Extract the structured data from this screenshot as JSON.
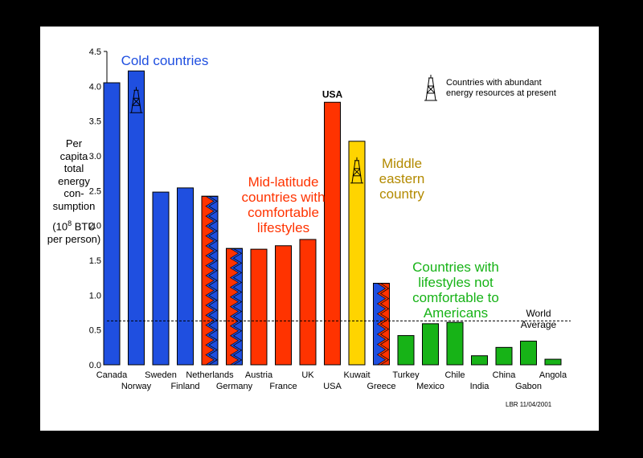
{
  "chart_data": {
    "type": "bar",
    "ylim": [
      0,
      4.5
    ],
    "yticks": [
      "0.0",
      "0.5",
      "1.0",
      "1.5",
      "2.0",
      "2.5",
      "3.0",
      "3.5",
      "4.0",
      "4.5"
    ],
    "ylabel": [
      "Per",
      "capita",
      "total",
      "energy",
      "con-",
      "sumption",
      "(10^8 BTU",
      "per person)"
    ],
    "categories": [
      "Canada",
      "Norway",
      "Sweden",
      "Finland",
      "Netherlands",
      "Germany",
      "Austria",
      "France",
      "UK",
      "USA",
      "Kuwait",
      "Greece",
      "Turkey",
      "Mexico",
      "Chile",
      "India",
      "China",
      "Gabon",
      "Angola"
    ],
    "values": [
      4.05,
      4.22,
      2.48,
      2.54,
      2.42,
      1.67,
      1.66,
      1.71,
      1.8,
      3.77,
      3.21,
      1.17,
      0.42,
      0.59,
      0.61,
      0.13,
      0.25,
      0.34,
      0.08
    ],
    "groups": [
      "cold",
      "cold",
      "cold",
      "cold",
      "cold",
      "cold",
      "mid",
      "mid",
      "mid",
      "mid",
      "mideast",
      "mid",
      "notcomf",
      "notcomf",
      "notcomf",
      "notcomf",
      "notcomf",
      "notcomf",
      "notcomf"
    ],
    "hatched": [
      false,
      false,
      false,
      false,
      true,
      true,
      false,
      false,
      false,
      false,
      false,
      true,
      false,
      false,
      false,
      false,
      false,
      false,
      false
    ],
    "hatch_colors": [
      "#ff3300",
      "#1f4fe0",
      "#17b317"
    ],
    "energy_resource_icon": [
      false,
      true,
      false,
      false,
      false,
      false,
      false,
      false,
      false,
      false,
      true,
      false,
      false,
      false,
      false,
      false,
      false,
      false,
      false
    ],
    "world_average": 0.63,
    "world_average_label": [
      "World",
      "Average"
    ],
    "bar_labels": {
      "USA": "USA"
    },
    "annotations": {
      "cold": "Cold countries",
      "mid": [
        "Mid-latitude",
        "countries with",
        "comfortable",
        "lifestyles"
      ],
      "mideast": [
        "Middle",
        "eastern",
        "country"
      ],
      "notcomf": [
        "Countries with",
        "lifestyles not",
        "comfortable to",
        "Americans"
      ]
    },
    "legend": [
      "Countries with abundant",
      "energy resources at present"
    ],
    "credit": "LBR 11/04/2001",
    "grid": false
  },
  "colors": {
    "cold": "#1f4fe0",
    "mid": "#ff3300",
    "mideast": "#ffd400",
    "notcomf": "#17b317",
    "mideast_text": "#b38a00"
  },
  "icons": {
    "rig": "oil-derrick-icon"
  }
}
